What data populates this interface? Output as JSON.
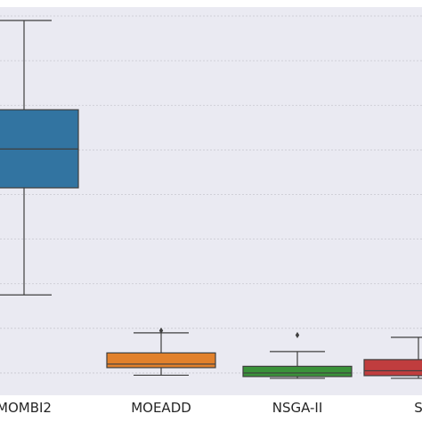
{
  "chart_data": {
    "type": "boxplot",
    "grid": "horizontal",
    "legend": "none",
    "colors": [
      "#3274a1",
      "#e1812c",
      "#3a923a",
      "#c03d3e"
    ],
    "categories": [
      "MOMBI2",
      "MOEADD",
      "NSGA-II",
      "S"
    ],
    "ylim": [
      0.0,
      8.7
    ],
    "boxes": [
      {
        "category": "MOMBI2",
        "whisker_low": 2.25,
        "q1": 4.65,
        "median": 5.52,
        "q3": 6.4,
        "whisker_high": 8.4,
        "outliers": []
      },
      {
        "category": "MOEADD",
        "whisker_low": 0.45,
        "q1": 0.62,
        "median": 0.7,
        "q3": 0.95,
        "whisker_high": 1.4,
        "outliers": [
          1.45
        ]
      },
      {
        "category": "NSGA-II",
        "whisker_low": 0.38,
        "q1": 0.42,
        "median": 0.5,
        "q3": 0.65,
        "whisker_high": 0.98,
        "outliers": [
          1.35
        ]
      },
      {
        "category": "S",
        "whisker_low": 0.38,
        "q1": 0.44,
        "median": 0.55,
        "q3": 0.8,
        "whisker_high": 1.3,
        "outliers": []
      }
    ],
    "gridlines": [
      0.5,
      1.5,
      2.5,
      3.5,
      4.5,
      5.5,
      6.5,
      7.5,
      8.5
    ]
  }
}
